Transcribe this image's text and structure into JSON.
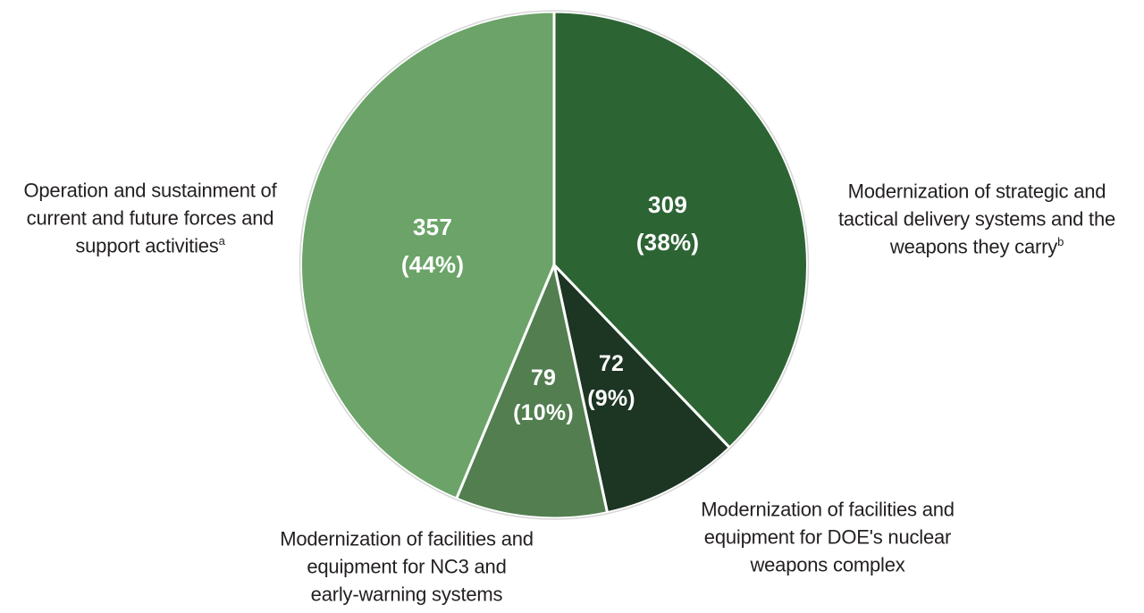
{
  "chart_data": {
    "type": "pie",
    "title": "",
    "direction": "clockwise",
    "start_angle_deg": 0,
    "legend_position": "callout-labels-around-pie",
    "separator_color": "#ffffff",
    "outer_ring_color": "#d6d6d6",
    "slices": [
      {
        "name": "delivery-systems",
        "label": "Modernization of strategic and tactical delivery systems and the weapons they carry",
        "footnote_mark": "b",
        "value": 309,
        "pct_label": "(38%)",
        "color": "#2d6434"
      },
      {
        "name": "doe-weapons-complex",
        "label": "Modernization of facilities and equipment for DOE's nuclear weapons complex",
        "value": 72,
        "pct_label": "(9%)",
        "color": "#1d3523"
      },
      {
        "name": "nc3-early-warning",
        "label": "Modernization of facilities and equipment for NC3 and early-warning systems",
        "value": 79,
        "pct_label": "(10%)",
        "color": "#527e50"
      },
      {
        "name": "operation-sustainment",
        "label": "Operation and sustainment of current and future forces and support activities",
        "footnote_mark": "a",
        "value": 357,
        "pct_label": "(44%)",
        "color": "#6ba368"
      }
    ]
  },
  "callouts": {
    "left": {
      "lines": [
        "Operation and sustainment of",
        "current and future forces and",
        "support activities"
      ],
      "sup": "a"
    },
    "right": {
      "lines": [
        "Modernization of strategic and",
        "tactical delivery systems and the",
        "weapons they carry"
      ],
      "sup": "b"
    },
    "bottom_left": {
      "lines": [
        "Modernization of facilities and",
        "equipment for NC3 and",
        "early-warning systems"
      ]
    },
    "bottom_right": {
      "lines": [
        "Modernization of facilities and",
        "equipment for DOE's nuclear",
        "weapons complex"
      ]
    }
  },
  "colors": {
    "background": "#ffffff",
    "callout_text": "#231f20",
    "slice_text": "#ffffff"
  }
}
